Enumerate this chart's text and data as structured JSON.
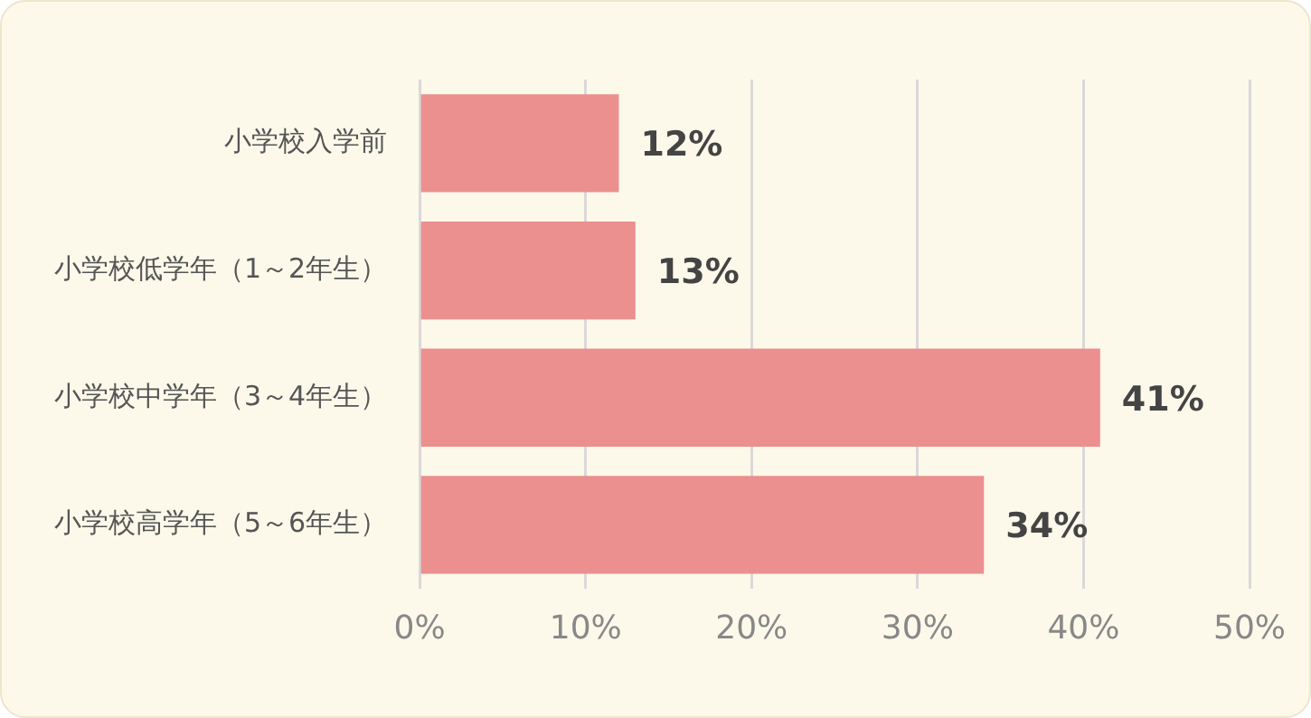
{
  "chart_data": {
    "type": "bar",
    "orientation": "horizontal",
    "categories": [
      "小学校入学前",
      "小学校低学年（1～2年生）",
      "小学校中学年（3～4年生）",
      "小学校高学年（5～6年生）"
    ],
    "values": [
      12,
      13,
      41,
      34
    ],
    "color": "#ec8f8f",
    "value_labels": [
      "12%",
      "13%",
      "41%",
      "34%"
    ],
    "xlim": [
      0,
      50
    ],
    "xticks": [
      {
        "value": 0,
        "label": "0%"
      },
      {
        "value": 10,
        "label": "10%"
      },
      {
        "value": 20,
        "label": "20%"
      },
      {
        "value": 30,
        "label": "30%"
      },
      {
        "value": 40,
        "label": "40%"
      },
      {
        "value": 50,
        "label": "50%"
      }
    ],
    "grid": "x",
    "legend": false
  }
}
